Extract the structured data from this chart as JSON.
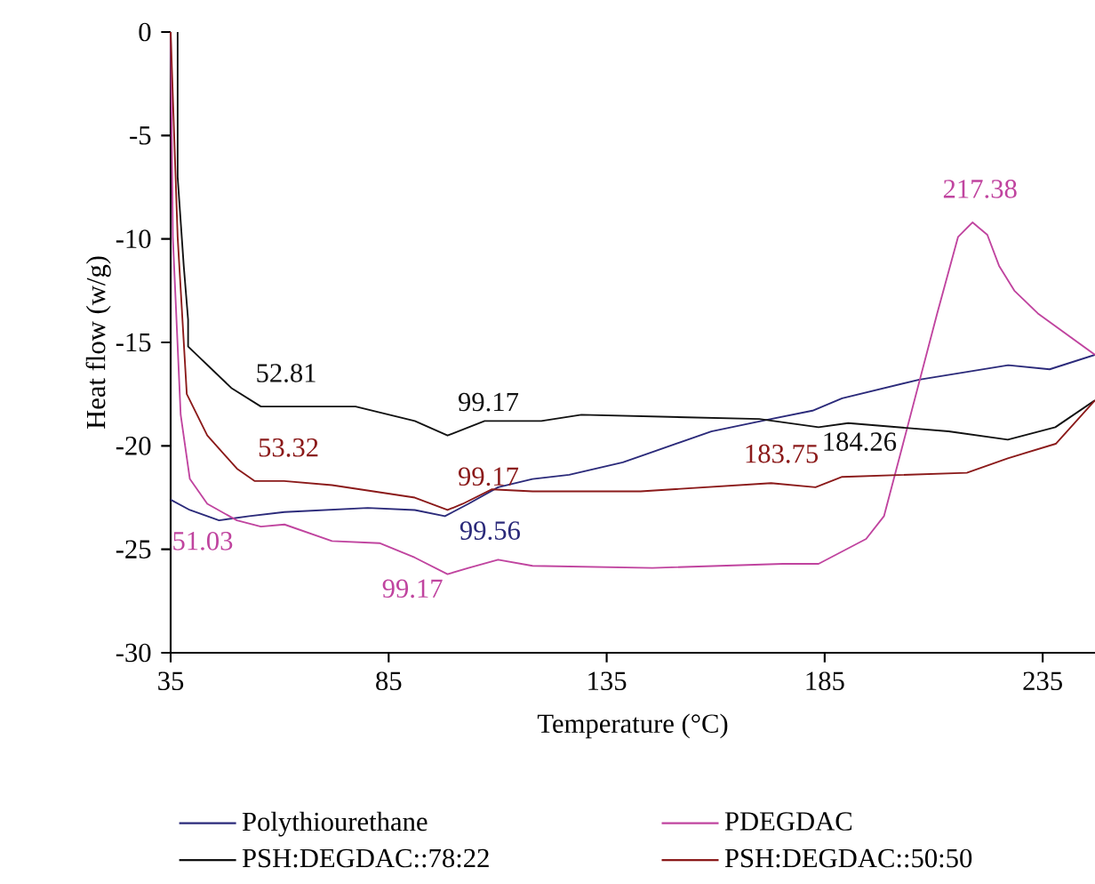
{
  "chart_data": {
    "type": "line",
    "xlabel": "Temperature (°C)",
    "ylabel": "Heat flow (w/g)",
    "xlim": [
      35,
      247
    ],
    "ylim": [
      -30,
      0
    ],
    "xticks": [
      35,
      85,
      135,
      185,
      235
    ],
    "yticks": [
      -30,
      -25,
      -20,
      -15,
      -10,
      -5,
      0
    ],
    "legend": "bottom",
    "grid": false,
    "marker": "none",
    "line_style": "solid",
    "series": [
      {
        "name": "Polythiourethane",
        "color": "#2b2a7a",
        "x": [
          35,
          39.4,
          46.1,
          53,
          61.1,
          80.2,
          91,
          97.9,
          103.3,
          110.1,
          118,
          126.4,
          138.7,
          159,
          172.7,
          182.2,
          189,
          206.7,
          227.1,
          236.6,
          247
        ],
        "values": [
          -22.6,
          -23.1,
          -23.6,
          -23.4,
          -23.2,
          -23.0,
          -23.1,
          -23.4,
          -22.8,
          -22.0,
          -21.6,
          -21.4,
          -20.8,
          -19.3,
          -18.7,
          -18.3,
          -17.7,
          -16.8,
          -16.1,
          -16.3,
          -15.6
        ]
      },
      {
        "name": "PDEGDAC",
        "color": "#c0449f",
        "x": [
          35,
          35.5,
          37.3,
          39.4,
          43.4,
          50.2,
          55.7,
          61.1,
          72,
          82.9,
          91,
          98.5,
          103.3,
          110.1,
          118,
          145.5,
          175.4,
          183.6,
          194.5,
          198.6,
          202.6,
          210.8,
          215.6,
          218.9,
          222.3,
          225,
          228.5,
          233.9,
          247
        ],
        "values": [
          0,
          -9.9,
          -18.5,
          -21.6,
          -22.8,
          -23.6,
          -23.9,
          -23.8,
          -24.6,
          -24.7,
          -25.4,
          -26.2,
          -25.9,
          -25.5,
          -25.8,
          -25.9,
          -25.7,
          -25.7,
          -24.5,
          -23.4,
          -20.2,
          -13.6,
          -9.9,
          -9.2,
          -9.8,
          -11.3,
          -12.5,
          -13.6,
          -15.6
        ]
      },
      {
        "name": "PSH:DEGDAC::78:22",
        "color": "#111111",
        "x": [
          36.6,
          36.6,
          38,
          39,
          39,
          48.9,
          55.7,
          77.4,
          91,
          98.5,
          107,
          111.5,
          120,
          129.2,
          170,
          183.6,
          190.4,
          213.4,
          227,
          237.9,
          247
        ],
        "values": [
          0,
          -7.0,
          -11.3,
          -13.9,
          -15.2,
          -17.2,
          -18.1,
          -18.1,
          -18.8,
          -19.5,
          -18.8,
          -18.8,
          -18.8,
          -18.5,
          -18.7,
          -19.1,
          -18.9,
          -19.3,
          -19.7,
          -19.1,
          -17.8
        ]
      },
      {
        "name": "PSH:DEGDAC::50:50",
        "color": "#8b1a1a",
        "x": [
          35,
          36.6,
          38.7,
          43.4,
          50.2,
          54.3,
          61,
          72,
          91,
          98.5,
          102,
          108.7,
          118,
          142.8,
          172.7,
          182.9,
          189,
          217.6,
          227,
          238,
          247
        ],
        "values": [
          0,
          -9.9,
          -17.5,
          -19.5,
          -21.1,
          -21.7,
          -21.7,
          -21.9,
          -22.5,
          -23.1,
          -22.8,
          -22.1,
          -22.2,
          -22.2,
          -21.8,
          -22.0,
          -21.5,
          -21.3,
          -20.6,
          -19.9,
          -17.8
        ]
      }
    ],
    "annotations": [
      {
        "text": "52.81",
        "x": 52.81,
        "y": -18.1
      },
      {
        "text": "99.17",
        "x": 99.17,
        "y": -19.5
      },
      {
        "text": "184.26",
        "x": 184.26,
        "y": -19.1
      },
      {
        "text": "53.32",
        "x": 53.32,
        "y": -21.7
      },
      {
        "text": "99.17",
        "x": 99.17,
        "y": -23.1
      },
      {
        "text": "183.75",
        "x": 183.75,
        "y": -22.0
      },
      {
        "text": "99.56",
        "x": 99.56,
        "y": -23.4
      },
      {
        "text": "51.03",
        "x": 51.03,
        "y": -23.9
      },
      {
        "text": "99.17",
        "x": 99.17,
        "y": -26.2
      },
      {
        "text": "217.38",
        "x": 217.38,
        "y": -9.2
      }
    ]
  }
}
